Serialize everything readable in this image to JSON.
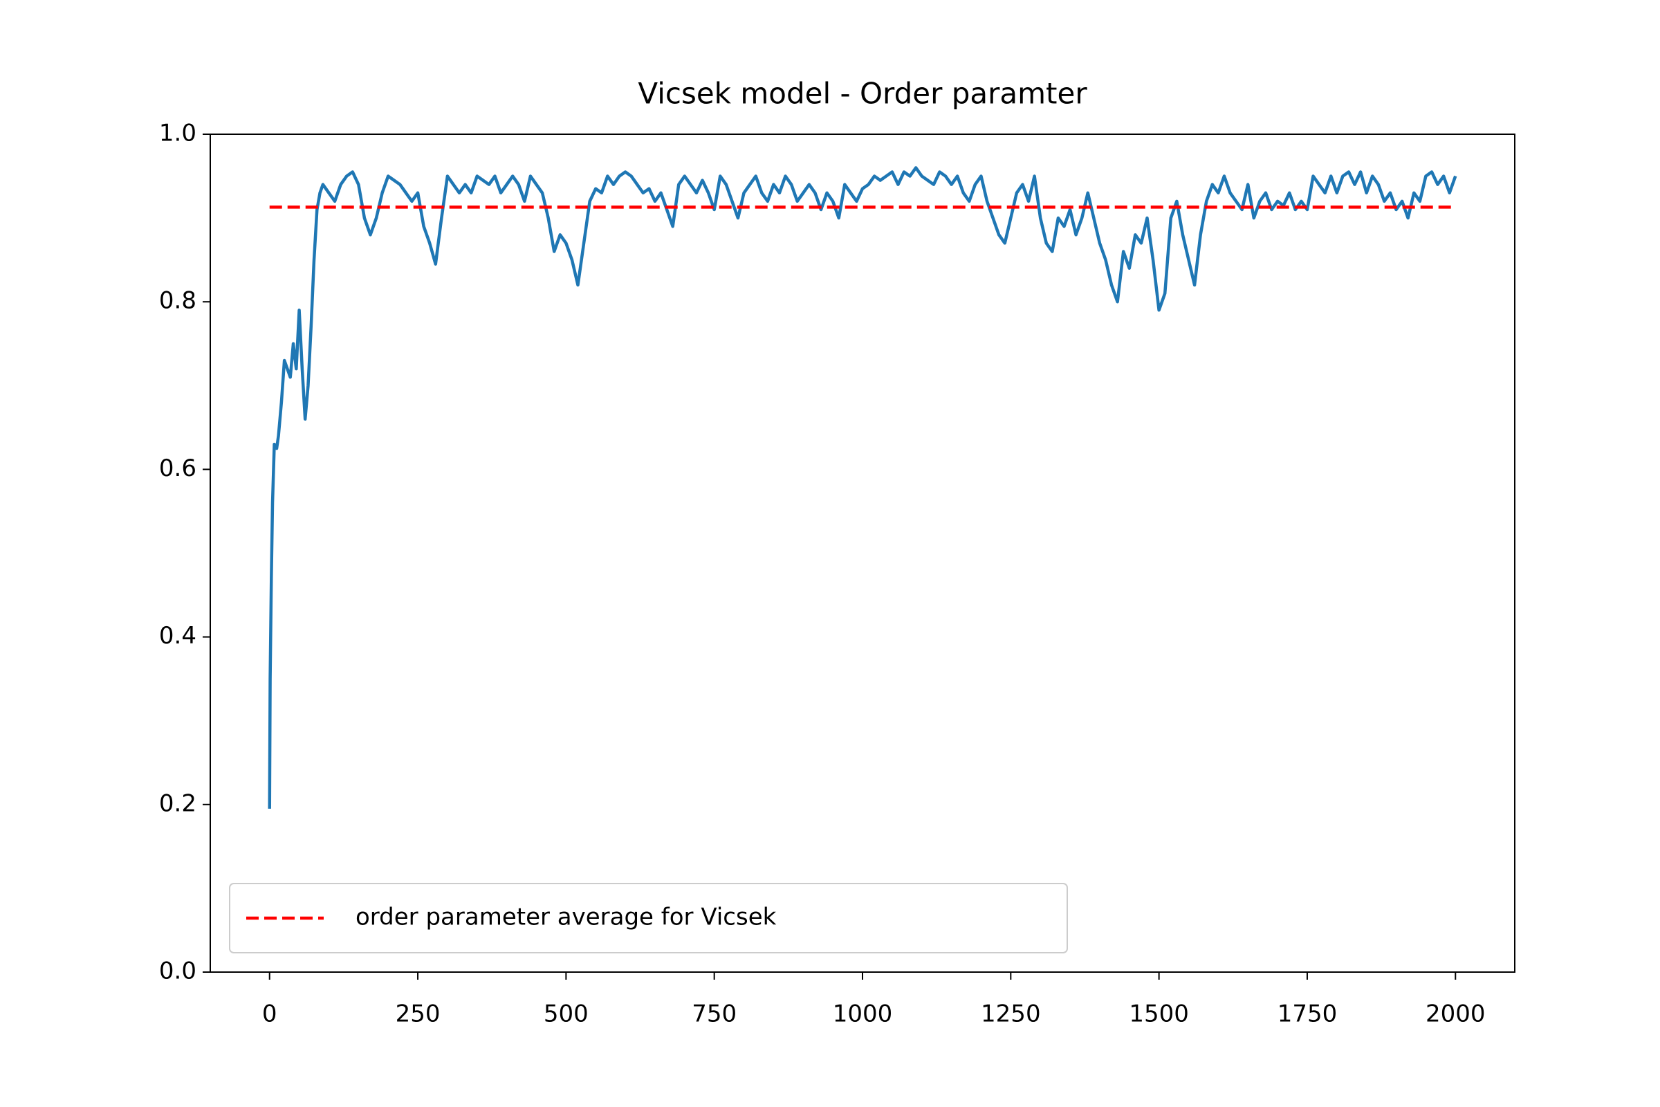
{
  "chart_data": {
    "type": "line",
    "title": "Vicsek model - Order paramter",
    "xlim": [
      -100,
      2100
    ],
    "ylim": [
      0,
      1
    ],
    "xticks": [
      0,
      250,
      500,
      750,
      1000,
      1250,
      1500,
      1750,
      2000
    ],
    "yticks": [
      {
        "value": 0,
        "label": "0.0"
      },
      0.2,
      0.4,
      0.6,
      0.8,
      {
        "value": 1,
        "label": "1.0"
      }
    ],
    "legend": "lower left",
    "series": [
      {
        "color": "#1f77b4",
        "dash": "solid",
        "x": [
          0,
          1,
          3,
          5,
          8,
          12,
          15,
          20,
          25,
          30,
          35,
          40,
          45,
          50,
          55,
          60,
          65,
          70,
          75,
          80,
          85,
          90,
          100,
          110,
          120,
          130,
          140,
          150,
          160,
          170,
          180,
          190,
          200,
          210,
          220,
          230,
          240,
          250,
          260,
          270,
          280,
          290,
          300,
          310,
          320,
          330,
          340,
          350,
          360,
          370,
          380,
          390,
          400,
          410,
          420,
          430,
          440,
          450,
          460,
          470,
          480,
          490,
          500,
          510,
          520,
          530,
          540,
          550,
          560,
          570,
          580,
          590,
          600,
          610,
          620,
          630,
          640,
          650,
          660,
          670,
          680,
          690,
          700,
          710,
          720,
          730,
          740,
          750,
          760,
          770,
          780,
          790,
          800,
          810,
          820,
          830,
          840,
          850,
          860,
          870,
          880,
          890,
          900,
          910,
          920,
          930,
          940,
          950,
          960,
          970,
          980,
          990,
          1000,
          1010,
          1020,
          1030,
          1040,
          1050,
          1060,
          1070,
          1080,
          1090,
          1100,
          1110,
          1120,
          1130,
          1140,
          1150,
          1160,
          1170,
          1180,
          1190,
          1200,
          1210,
          1220,
          1230,
          1240,
          1250,
          1260,
          1270,
          1280,
          1290,
          1300,
          1310,
          1320,
          1330,
          1340,
          1350,
          1360,
          1370,
          1380,
          1390,
          1400,
          1410,
          1420,
          1430,
          1440,
          1450,
          1460,
          1470,
          1480,
          1490,
          1500,
          1510,
          1520,
          1530,
          1540,
          1550,
          1560,
          1570,
          1580,
          1590,
          1600,
          1610,
          1620,
          1630,
          1640,
          1650,
          1660,
          1670,
          1680,
          1690,
          1700,
          1710,
          1720,
          1730,
          1740,
          1750,
          1760,
          1770,
          1780,
          1790,
          1800,
          1810,
          1820,
          1830,
          1840,
          1850,
          1860,
          1870,
          1880,
          1890,
          1900,
          1910,
          1920,
          1930,
          1940,
          1950,
          1960,
          1970,
          1980,
          1990,
          2000
        ],
        "values": [
          0.195,
          0.35,
          0.47,
          0.56,
          0.63,
          0.625,
          0.64,
          0.68,
          0.73,
          0.72,
          0.71,
          0.75,
          0.72,
          0.79,
          0.72,
          0.66,
          0.7,
          0.77,
          0.85,
          0.91,
          0.93,
          0.94,
          0.93,
          0.92,
          0.94,
          0.95,
          0.955,
          0.94,
          0.9,
          0.88,
          0.9,
          0.93,
          0.95,
          0.945,
          0.94,
          0.93,
          0.92,
          0.93,
          0.89,
          0.87,
          0.845,
          0.9,
          0.95,
          0.94,
          0.93,
          0.94,
          0.93,
          0.95,
          0.945,
          0.94,
          0.95,
          0.93,
          0.94,
          0.95,
          0.94,
          0.92,
          0.95,
          0.94,
          0.93,
          0.9,
          0.86,
          0.88,
          0.87,
          0.85,
          0.82,
          0.87,
          0.92,
          0.935,
          0.93,
          0.95,
          0.94,
          0.95,
          0.955,
          0.95,
          0.94,
          0.93,
          0.935,
          0.92,
          0.93,
          0.91,
          0.89,
          0.94,
          0.95,
          0.94,
          0.93,
          0.945,
          0.93,
          0.91,
          0.95,
          0.94,
          0.92,
          0.9,
          0.93,
          0.94,
          0.95,
          0.93,
          0.92,
          0.94,
          0.93,
          0.95,
          0.94,
          0.92,
          0.93,
          0.94,
          0.93,
          0.91,
          0.93,
          0.92,
          0.9,
          0.94,
          0.93,
          0.92,
          0.935,
          0.94,
          0.95,
          0.945,
          0.95,
          0.955,
          0.94,
          0.955,
          0.95,
          0.96,
          0.95,
          0.945,
          0.94,
          0.955,
          0.95,
          0.94,
          0.95,
          0.93,
          0.92,
          0.94,
          0.95,
          0.92,
          0.9,
          0.88,
          0.87,
          0.9,
          0.93,
          0.94,
          0.92,
          0.95,
          0.9,
          0.87,
          0.86,
          0.9,
          0.89,
          0.91,
          0.88,
          0.9,
          0.93,
          0.9,
          0.87,
          0.85,
          0.82,
          0.8,
          0.86,
          0.84,
          0.88,
          0.87,
          0.9,
          0.85,
          0.79,
          0.81,
          0.9,
          0.92,
          0.88,
          0.85,
          0.82,
          0.88,
          0.92,
          0.94,
          0.93,
          0.95,
          0.93,
          0.92,
          0.91,
          0.94,
          0.9,
          0.92,
          0.93,
          0.91,
          0.92,
          0.915,
          0.93,
          0.91,
          0.92,
          0.91,
          0.95,
          0.94,
          0.93,
          0.95,
          0.93,
          0.95,
          0.955,
          0.94,
          0.955,
          0.93,
          0.95,
          0.94,
          0.92,
          0.93,
          0.91,
          0.92,
          0.9,
          0.93,
          0.92,
          0.95,
          0.955,
          0.94,
          0.95,
          0.93,
          0.95
        ]
      },
      {
        "name": "order parameter average for Vicsek",
        "color": "#ff0000",
        "dash": "dashed",
        "x": [
          0,
          2000
        ],
        "values": [
          0.913,
          0.913
        ]
      }
    ]
  }
}
